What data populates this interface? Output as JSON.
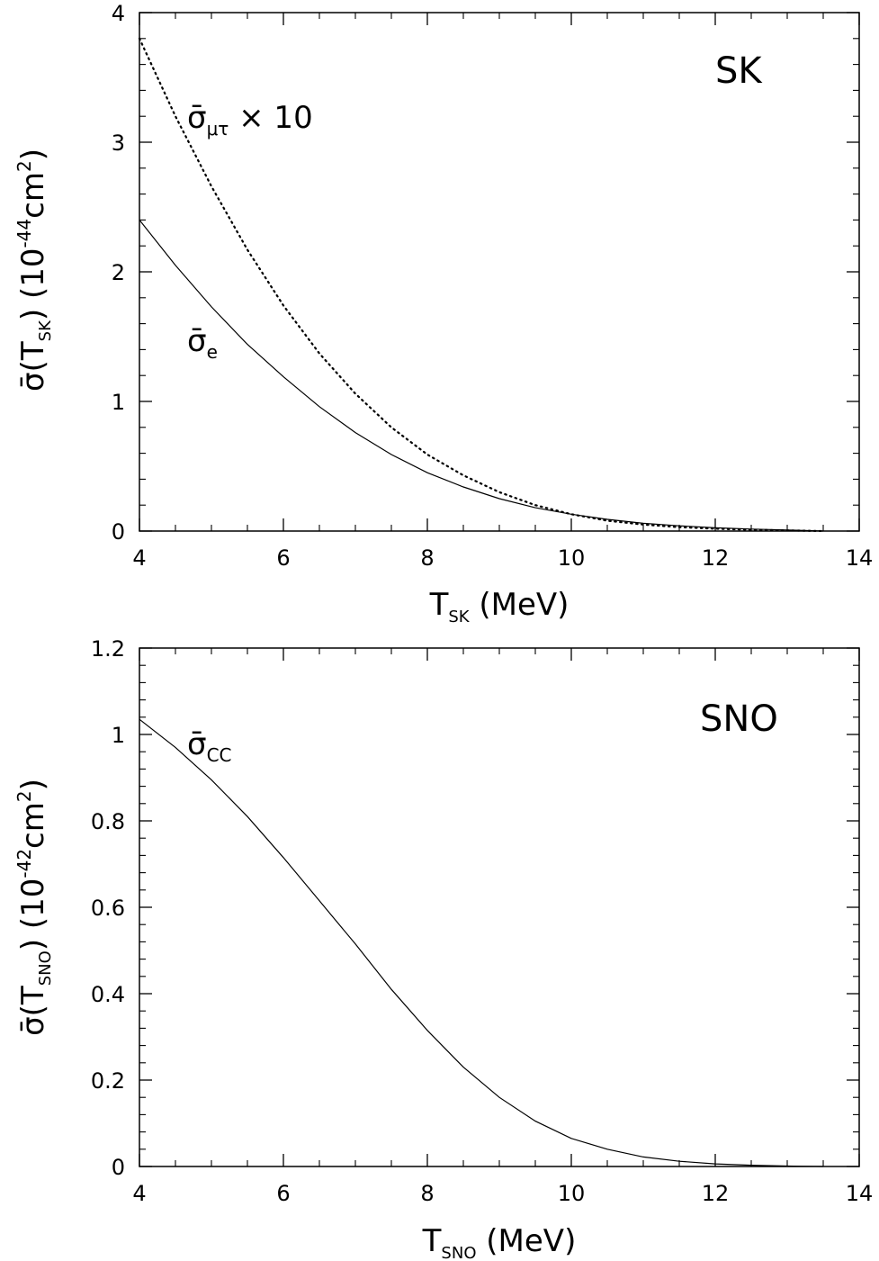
{
  "chart_data": [
    {
      "type": "line",
      "panel_label": "SK",
      "xlabel": {
        "main": "T",
        "sub": "SK",
        "unit": "(MeV)"
      },
      "ylabel": {
        "main": "σ̄",
        "open": "(T",
        "sub": "SK",
        "close": ")",
        "units_prefix": "(10",
        "units_exp": "-44",
        "units_mid": "cm",
        "units_exp2": "2",
        "units_suffix": ")"
      },
      "xlim": [
        4,
        14
      ],
      "ylim": [
        0,
        4
      ],
      "xticks": [
        4,
        6,
        8,
        10,
        12,
        14
      ],
      "yticks": [
        0,
        1,
        2,
        3,
        4
      ],
      "series": [
        {
          "label_main": "σ̄",
          "label_sub": "e",
          "label_suffix": "",
          "style": "solid",
          "x": [
            4,
            4.5,
            5,
            5.5,
            6,
            6.5,
            7,
            7.5,
            8,
            8.5,
            9,
            9.5,
            10,
            10.5,
            11,
            11.5,
            12,
            12.5,
            13,
            13.5
          ],
          "y": [
            2.4,
            2.05,
            1.73,
            1.44,
            1.19,
            0.96,
            0.76,
            0.59,
            0.45,
            0.34,
            0.25,
            0.18,
            0.13,
            0.09,
            0.06,
            0.04,
            0.025,
            0.015,
            0.008,
            0.0
          ]
        },
        {
          "label_main": "σ̄",
          "label_sub": "μτ",
          "label_suffix": "× 10",
          "style": "dotted",
          "x": [
            4,
            4.5,
            5,
            5.5,
            6,
            6.5,
            7,
            7.5,
            8,
            8.5,
            9,
            9.5,
            10,
            10.5,
            11,
            11.5,
            12,
            12.5,
            13,
            13.5
          ],
          "y": [
            3.8,
            3.2,
            2.66,
            2.17,
            1.74,
            1.37,
            1.06,
            0.8,
            0.59,
            0.43,
            0.3,
            0.2,
            0.13,
            0.08,
            0.05,
            0.03,
            0.018,
            0.01,
            0.005,
            0.0
          ]
        }
      ]
    },
    {
      "type": "line",
      "panel_label": "SNO",
      "xlabel": {
        "main": "T",
        "sub": "SNO",
        "unit": "(MeV)"
      },
      "ylabel": {
        "main": "σ̄",
        "open": "(T",
        "sub": "SNO",
        "close": ")",
        "units_prefix": "(10",
        "units_exp": "-42",
        "units_mid": "cm",
        "units_exp2": "2",
        "units_suffix": ")"
      },
      "xlim": [
        4,
        14
      ],
      "ylim": [
        0,
        1.2
      ],
      "xticks": [
        4,
        6,
        8,
        10,
        12,
        14
      ],
      "yticks": [
        0,
        0.2,
        0.4,
        0.6,
        0.8,
        1,
        1.2
      ],
      "series": [
        {
          "label_main": "σ̄",
          "label_sub": "CC",
          "label_suffix": "",
          "style": "solid",
          "x": [
            4,
            4.5,
            5,
            5.5,
            6,
            6.5,
            7,
            7.5,
            8,
            8.5,
            9,
            9.5,
            10,
            10.5,
            11,
            11.5,
            12,
            12.5,
            13,
            13.5
          ],
          "y": [
            1.035,
            0.97,
            0.895,
            0.81,
            0.715,
            0.615,
            0.515,
            0.41,
            0.315,
            0.23,
            0.16,
            0.105,
            0.065,
            0.04,
            0.022,
            0.012,
            0.006,
            0.003,
            0.001,
            0.0
          ]
        }
      ]
    }
  ]
}
